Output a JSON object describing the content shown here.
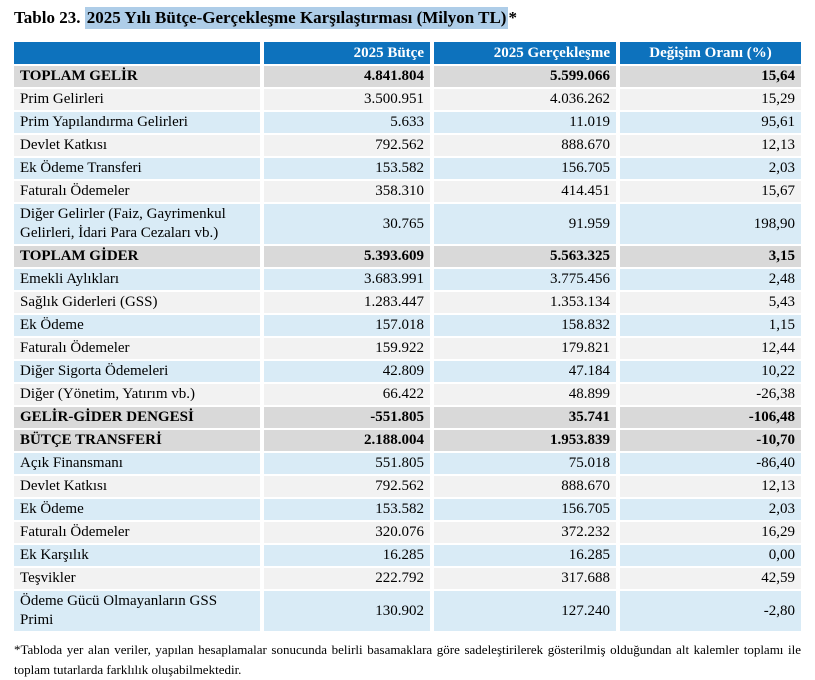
{
  "title": {
    "prefix": "Tablo 23. ",
    "highlighted": "2025 Yılı Bütçe-Gerçekleşme Karşılaştırması (Milyon TL)",
    "suffix": "*"
  },
  "colors": {
    "header_bg": "#0d72bd",
    "header_text": "#ffffff",
    "total_row_bg": "#d9d9d9",
    "blue_row_bg": "#d9ebf6",
    "white_row_bg": "#f2f2f2",
    "title_highlight": "#aecde8"
  },
  "table": {
    "headers": [
      "",
      "2025 Bütçe",
      "2025 Gerçekleşme",
      "Değişim Oranı (%)"
    ],
    "rows": [
      {
        "label": "TOPLAM GELİR",
        "budget": "4.841.804",
        "actual": "5.599.066",
        "change": "15,64",
        "style": "total"
      },
      {
        "label": "Prim Gelirleri",
        "budget": "3.500.951",
        "actual": "4.036.262",
        "change": "15,29",
        "style": "white"
      },
      {
        "label": "Prim Yapılandırma Gelirleri",
        "budget": "5.633",
        "actual": "11.019",
        "change": "95,61",
        "style": "blue"
      },
      {
        "label": "Devlet Katkısı",
        "budget": "792.562",
        "actual": "888.670",
        "change": "12,13",
        "style": "white"
      },
      {
        "label": "Ek Ödeme Transferi",
        "budget": "153.582",
        "actual": "156.705",
        "change": "2,03",
        "style": "blue"
      },
      {
        "label": "Faturalı Ödemeler",
        "budget": "358.310",
        "actual": "414.451",
        "change": "15,67",
        "style": "white"
      },
      {
        "label": "Diğer Gelirler (Faiz, Gayrimenkul Gelirleri, İdari Para Cezaları vb.)",
        "budget": "30.765",
        "actual": "91.959",
        "change": "198,90",
        "style": "blue"
      },
      {
        "label": "TOPLAM GİDER",
        "budget": "5.393.609",
        "actual": "5.563.325",
        "change": "3,15",
        "style": "total"
      },
      {
        "label": "Emekli Aylıkları",
        "budget": "3.683.991",
        "actual": "3.775.456",
        "change": "2,48",
        "style": "blue"
      },
      {
        "label": "Sağlık Giderleri (GSS)",
        "budget": "1.283.447",
        "actual": "1.353.134",
        "change": "5,43",
        "style": "white"
      },
      {
        "label": "Ek Ödeme",
        "budget": "157.018",
        "actual": "158.832",
        "change": "1,15",
        "style": "blue"
      },
      {
        "label": "Faturalı Ödemeler",
        "budget": "159.922",
        "actual": "179.821",
        "change": "12,44",
        "style": "white"
      },
      {
        "label": "Diğer Sigorta Ödemeleri",
        "budget": "42.809",
        "actual": "47.184",
        "change": "10,22",
        "style": "blue"
      },
      {
        "label": "Diğer (Yönetim, Yatırım vb.)",
        "budget": "66.422",
        "actual": "48.899",
        "change": "-26,38",
        "style": "white"
      },
      {
        "label": "GELİR-GİDER DENGESİ",
        "budget": "-551.805",
        "actual": "35.741",
        "change": "-106,48",
        "style": "total"
      },
      {
        "label": "BÜTÇE TRANSFERİ",
        "budget": "2.188.004",
        "actual": "1.953.839",
        "change": "-10,70",
        "style": "total"
      },
      {
        "label": "Açık Finansmanı",
        "budget": "551.805",
        "actual": "75.018",
        "change": "-86,40",
        "style": "blue"
      },
      {
        "label": "Devlet Katkısı",
        "budget": "792.562",
        "actual": "888.670",
        "change": "12,13",
        "style": "white"
      },
      {
        "label": "Ek Ödeme",
        "budget": "153.582",
        "actual": "156.705",
        "change": "2,03",
        "style": "blue"
      },
      {
        "label": "Faturalı Ödemeler",
        "budget": "320.076",
        "actual": "372.232",
        "change": "16,29",
        "style": "white"
      },
      {
        "label": "Ek Karşılık",
        "budget": "16.285",
        "actual": "16.285",
        "change": "0,00",
        "style": "blue"
      },
      {
        "label": "Teşvikler",
        "budget": "222.792",
        "actual": "317.688",
        "change": "42,59",
        "style": "white"
      },
      {
        "label": "Ödeme Gücü Olmayanların GSS Primi",
        "budget": "130.902",
        "actual": "127.240",
        "change": "-2,80",
        "style": "blue"
      }
    ]
  },
  "footnote": "*Tabloda yer alan veriler, yapılan hesaplamalar sonucunda belirli basamaklara göre sadeleştirilerek gösterilmiş olduğundan alt kalemler toplamı ile toplam tutarlarda farklılık oluşabilmektedir."
}
